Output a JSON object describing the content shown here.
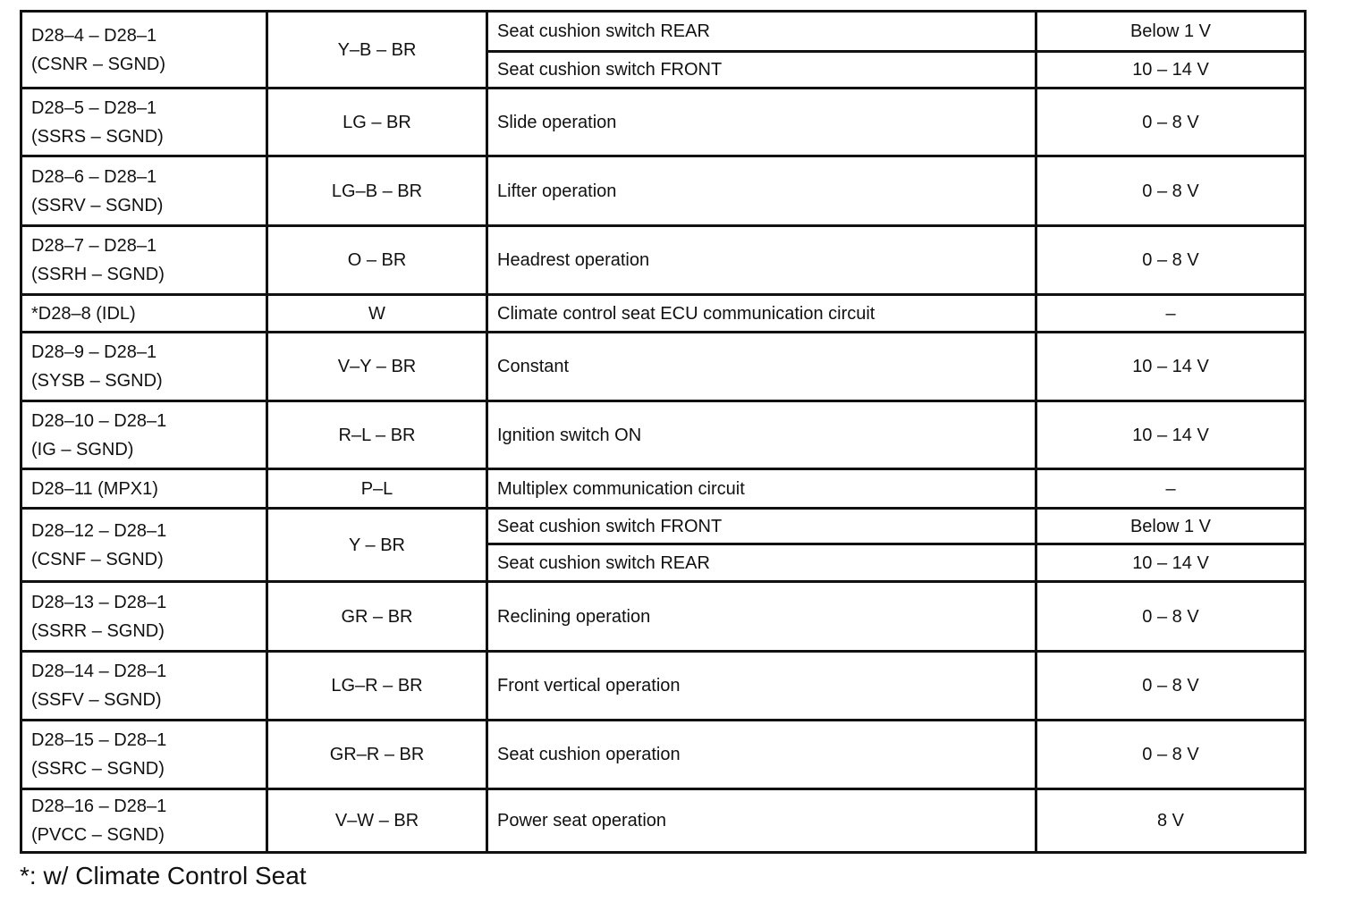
{
  "table": {
    "rows": [
      {
        "terminal": [
          "D28–4 – D28–1",
          "(CSNR – SGND)"
        ],
        "wire": "Y–B – BR",
        "conditions": [
          {
            "condition": "Seat cushion switch REAR",
            "spec": "Below 1 V"
          },
          {
            "condition": "Seat cushion switch FRONT",
            "spec": "10 – 14 V"
          }
        ]
      },
      {
        "terminal": [
          "D28–5 – D28–1",
          "(SSRS – SGND)"
        ],
        "wire": "LG – BR",
        "conditions": [
          {
            "condition": "Slide operation",
            "spec": "0 – 8 V"
          }
        ]
      },
      {
        "terminal": [
          "D28–6 – D28–1",
          "(SSRV – SGND)"
        ],
        "wire": "LG–B – BR",
        "conditions": [
          {
            "condition": "Lifter operation",
            "spec": "0 – 8 V"
          }
        ]
      },
      {
        "terminal": [
          "D28–7 – D28–1",
          "(SSRH – SGND)"
        ],
        "wire": "O – BR",
        "conditions": [
          {
            "condition": "Headrest operation",
            "spec": "0 – 8 V"
          }
        ]
      },
      {
        "terminal": [
          "*D28–8 (IDL)"
        ],
        "wire": "W",
        "conditions": [
          {
            "condition": "Climate control seat ECU communication circuit",
            "spec": "–"
          }
        ]
      },
      {
        "terminal": [
          "D28–9 – D28–1",
          "(SYSB – SGND)"
        ],
        "wire": "V–Y – BR",
        "conditions": [
          {
            "condition": "Constant",
            "spec": "10 – 14 V"
          }
        ]
      },
      {
        "terminal": [
          "D28–10 – D28–1",
          "(IG – SGND)"
        ],
        "wire": "R–L – BR",
        "conditions": [
          {
            "condition": "Ignition switch ON",
            "spec": "10 – 14 V"
          }
        ]
      },
      {
        "terminal": [
          "D28–11 (MPX1)"
        ],
        "wire": "P–L",
        "conditions": [
          {
            "condition": "Multiplex communication circuit",
            "spec": "–"
          }
        ]
      },
      {
        "terminal": [
          "D28–12 – D28–1",
          "(CSNF – SGND)"
        ],
        "wire": "Y – BR",
        "conditions": [
          {
            "condition": "Seat cushion switch FRONT",
            "spec": "Below 1 V"
          },
          {
            "condition": "Seat cushion switch REAR",
            "spec": "10 – 14 V"
          }
        ]
      },
      {
        "terminal": [
          "D28–13 – D28–1",
          "(SSRR – SGND)"
        ],
        "wire": "GR – BR",
        "conditions": [
          {
            "condition": "Reclining operation",
            "spec": "0 – 8 V"
          }
        ]
      },
      {
        "terminal": [
          "D28–14 – D28–1",
          "(SSFV – SGND)"
        ],
        "wire": "LG–R – BR",
        "conditions": [
          {
            "condition": "Front vertical operation",
            "spec": "0 – 8 V"
          }
        ]
      },
      {
        "terminal": [
          "D28–15 – D28–1",
          "(SSRC – SGND)"
        ],
        "wire": "GR–R – BR",
        "conditions": [
          {
            "condition": "Seat cushion operation",
            "spec": "0 – 8 V"
          }
        ]
      },
      {
        "terminal": [
          "D28–16 – D28–1",
          "(PVCC – SGND)"
        ],
        "wire": "V–W – BR",
        "conditions": [
          {
            "condition": "Power seat operation",
            "spec": "8 V"
          }
        ]
      }
    ]
  },
  "footnote": "*: w/ Climate Control Seat"
}
